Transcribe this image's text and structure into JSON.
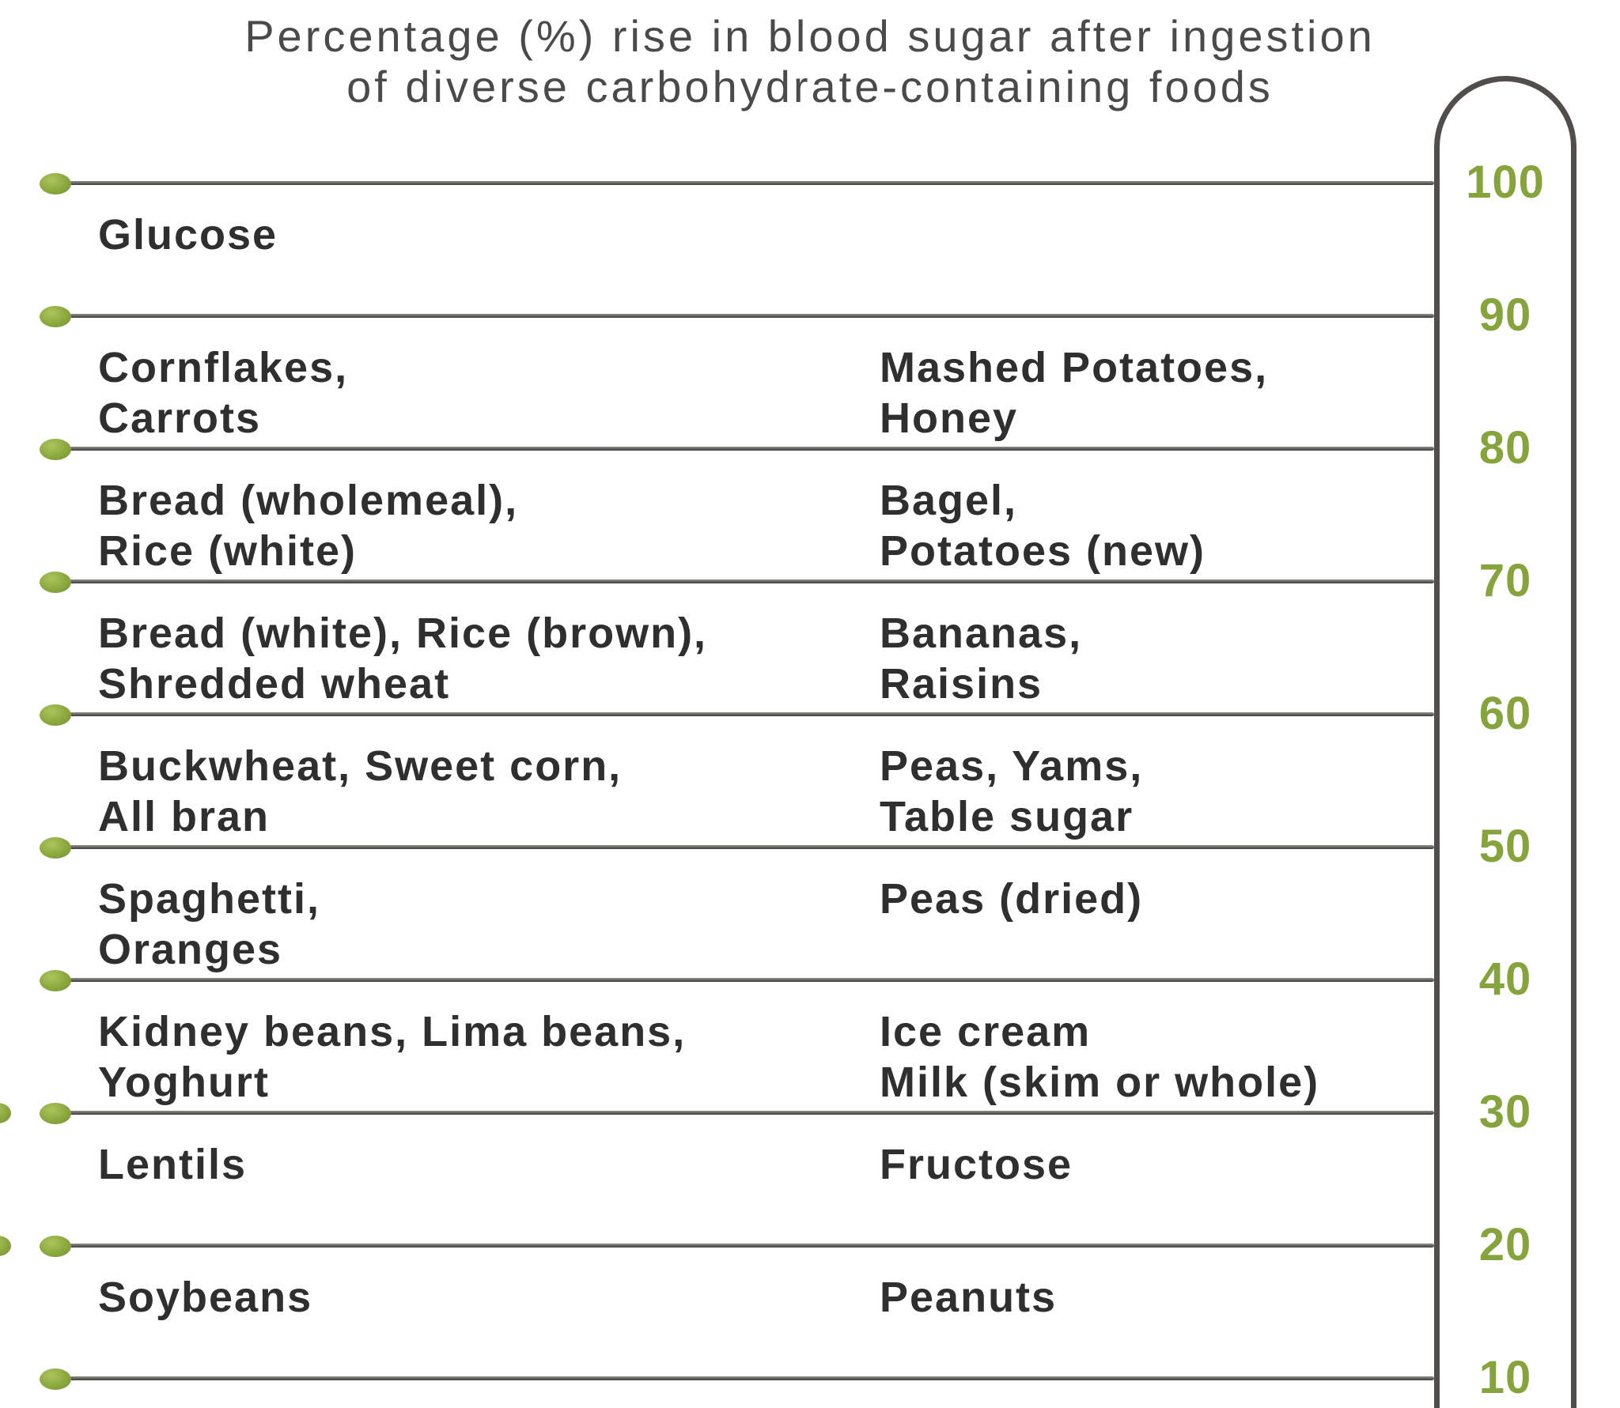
{
  "title": {
    "line1": "Percentage (%) rise in blood sugar after ingestion",
    "line2": "of diverse carbohydrate-containing foods"
  },
  "colors": {
    "accent_green": "#86a43c",
    "line_gray": "#4a4a45",
    "tube_border_gray": "#514d4b",
    "food_text": "#2f2f2f",
    "title_text": "#4a4a4a",
    "background": "#ffffff"
  },
  "chart_data": {
    "type": "table",
    "title": "Percentage (%) rise in blood sugar after ingestion of diverse carbohydrate-containing foods",
    "ylabel": "% rise in blood sugar",
    "scale_ticks": [
      100,
      90,
      80,
      70,
      60,
      50,
      40,
      30,
      20,
      10
    ],
    "scale_max": 100,
    "scale_min": 10,
    "legend_position": "none",
    "grid": "horizontal lines at each 10-unit tick",
    "rows": [
      {
        "range": "100-90",
        "left": "Glucose",
        "right": ""
      },
      {
        "range": "90-80",
        "left": "Cornflakes,\nCarrots",
        "right": "Mashed Potatoes,\nHoney"
      },
      {
        "range": "80-70",
        "left": "Bread (wholemeal),\nRice (white)",
        "right": "Bagel,\nPotatoes (new)"
      },
      {
        "range": "70-60",
        "left": "Bread (white), Rice (brown),\nShredded wheat",
        "right": "Bananas,\nRaisins"
      },
      {
        "range": "60-50",
        "left": "Buckwheat, Sweet corn,\nAll bran",
        "right": "Peas, Yams,\nTable sugar"
      },
      {
        "range": "50-40",
        "left": "Spaghetti,\nOranges",
        "right": "Peas (dried)"
      },
      {
        "range": "40-30",
        "left": "Kidney beans, Lima beans,\nYoghurt",
        "right": "Ice cream\nMilk (skim or whole)"
      },
      {
        "range": "30-20",
        "left": "Lentils",
        "right": "Fructose"
      },
      {
        "range": "20-10",
        "left": "Soybeans",
        "right": "Peanuts"
      }
    ]
  }
}
